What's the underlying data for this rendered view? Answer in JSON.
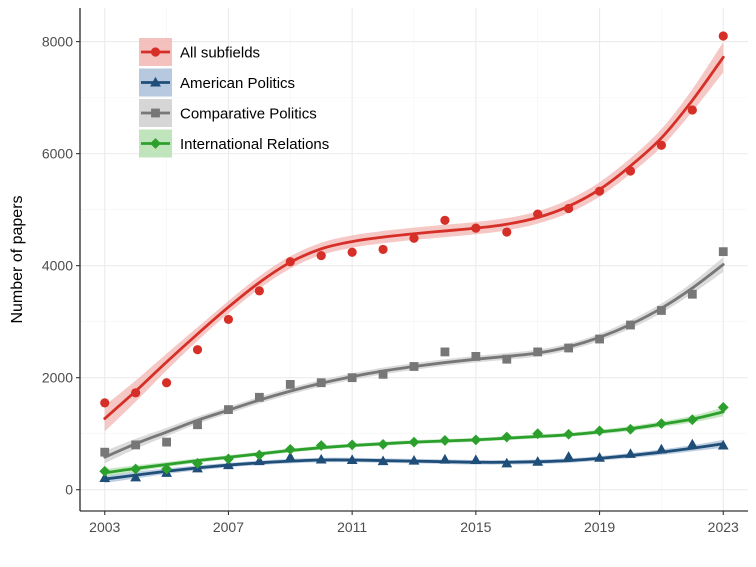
{
  "chart_data": {
    "type": "scatter",
    "title": "",
    "xlabel": "",
    "ylabel": "Number of papers",
    "xlim": [
      2002.2,
      2023.8
    ],
    "ylim": [
      -380,
      8600
    ],
    "x_ticks": [
      2003,
      2007,
      2011,
      2015,
      2019,
      2023
    ],
    "x_tick_labels": [
      "2003",
      "2007",
      "2011",
      "2015",
      "2019",
      "2023"
    ],
    "y_ticks": [
      0,
      2000,
      4000,
      6000,
      8000
    ],
    "y_tick_labels": [
      "0",
      "2000",
      "4000",
      "6000",
      "8000"
    ],
    "grid": true,
    "legend_position": "top-left",
    "x": [
      2003,
      2004,
      2005,
      2006,
      2007,
      2008,
      2009,
      2010,
      2011,
      2012,
      2013,
      2014,
      2015,
      2016,
      2017,
      2018,
      2019,
      2020,
      2021,
      2022,
      2023
    ],
    "series": [
      {
        "name": "All subfields",
        "color": "#d62f27",
        "band_color": "#f2b6b3",
        "marker": "circle",
        "values": [
          1550,
          1730,
          1910,
          2500,
          3040,
          3550,
          4070,
          4180,
          4240,
          4290,
          4490,
          4810,
          4670,
          4600,
          4920,
          5020,
          5330,
          5690,
          6150,
          6780,
          8100
        ],
        "fit": [
          1270,
          1760,
          2280,
          2780,
          3260,
          3700,
          4060,
          4300,
          4430,
          4510,
          4570,
          4620,
          4670,
          4740,
          4860,
          5060,
          5360,
          5780,
          6280,
          6950,
          7720
        ],
        "ci": [
          230,
          190,
          150,
          120,
          110,
          110,
          110,
          110,
          110,
          110,
          110,
          110,
          110,
          110,
          110,
          120,
          130,
          140,
          160,
          200,
          270
        ]
      },
      {
        "name": "American Politics",
        "color": "#1f4e79",
        "band_color": "#a9bfd8",
        "marker": "triangle",
        "values": [
          210,
          220,
          300,
          380,
          440,
          510,
          580,
          540,
          530,
          510,
          520,
          540,
          530,
          470,
          500,
          590,
          570,
          640,
          720,
          810,
          790
        ],
        "fit": [
          190,
          260,
          330,
          390,
          440,
          480,
          510,
          530,
          530,
          520,
          510,
          500,
          490,
          490,
          500,
          520,
          560,
          610,
          670,
          740,
          820
        ],
        "ci": [
          70,
          60,
          50,
          45,
          40,
          40,
          40,
          40,
          40,
          40,
          40,
          40,
          40,
          40,
          40,
          40,
          40,
          45,
          50,
          55,
          70
        ]
      },
      {
        "name": "Comparative Politics",
        "color": "#777777",
        "band_color": "#cfcfcf",
        "marker": "square",
        "values": [
          670,
          800,
          850,
          1160,
          1430,
          1650,
          1880,
          1910,
          2000,
          2060,
          2200,
          2460,
          2380,
          2330,
          2460,
          2530,
          2690,
          2940,
          3200,
          3490,
          4250
        ],
        "fit": [
          580,
          820,
          1030,
          1240,
          1420,
          1600,
          1760,
          1900,
          2020,
          2120,
          2200,
          2270,
          2330,
          2380,
          2440,
          2550,
          2720,
          2950,
          3240,
          3600,
          4020
        ],
        "ci": [
          110,
          90,
          75,
          65,
          60,
          60,
          60,
          60,
          60,
          60,
          60,
          60,
          60,
          60,
          60,
          60,
          65,
          75,
          85,
          100,
          130
        ]
      },
      {
        "name": "International Relations",
        "color": "#2ca02c",
        "band_color": "#b5e0b0",
        "marker": "diamond",
        "values": [
          330,
          370,
          370,
          470,
          550,
          620,
          720,
          790,
          800,
          810,
          850,
          880,
          890,
          940,
          1000,
          990,
          1050,
          1080,
          1180,
          1250,
          1470
        ],
        "fit": [
          300,
          380,
          450,
          520,
          580,
          640,
          700,
          750,
          790,
          820,
          850,
          870,
          890,
          920,
          950,
          980,
          1030,
          1090,
          1170,
          1260,
          1390
        ],
        "ci": [
          70,
          55,
          45,
          40,
          35,
          35,
          35,
          35,
          35,
          35,
          35,
          35,
          35,
          35,
          35,
          35,
          40,
          45,
          50,
          60,
          80
        ]
      }
    ]
  }
}
